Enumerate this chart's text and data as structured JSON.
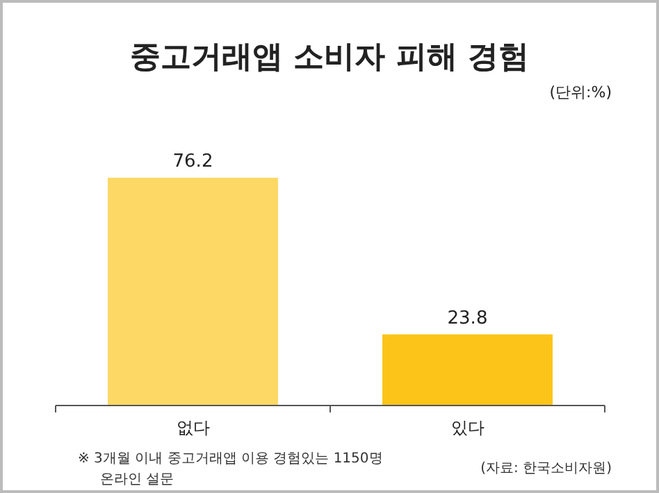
{
  "chart_data": {
    "type": "bar",
    "title": "중고거래앱 소비자 피해 경험",
    "subtitle": "(단위:%)",
    "categories": [
      "없다",
      "있다"
    ],
    "values": [
      76.2,
      23.8
    ],
    "colors": [
      "#fdd865",
      "#fcc419"
    ],
    "data_labels": true,
    "annotations": [
      "※ 3개월 이내 중고거래앱 이용 경험있는 1150명\n온라인 설문",
      "(자료: 한국소비자원)"
    ]
  }
}
